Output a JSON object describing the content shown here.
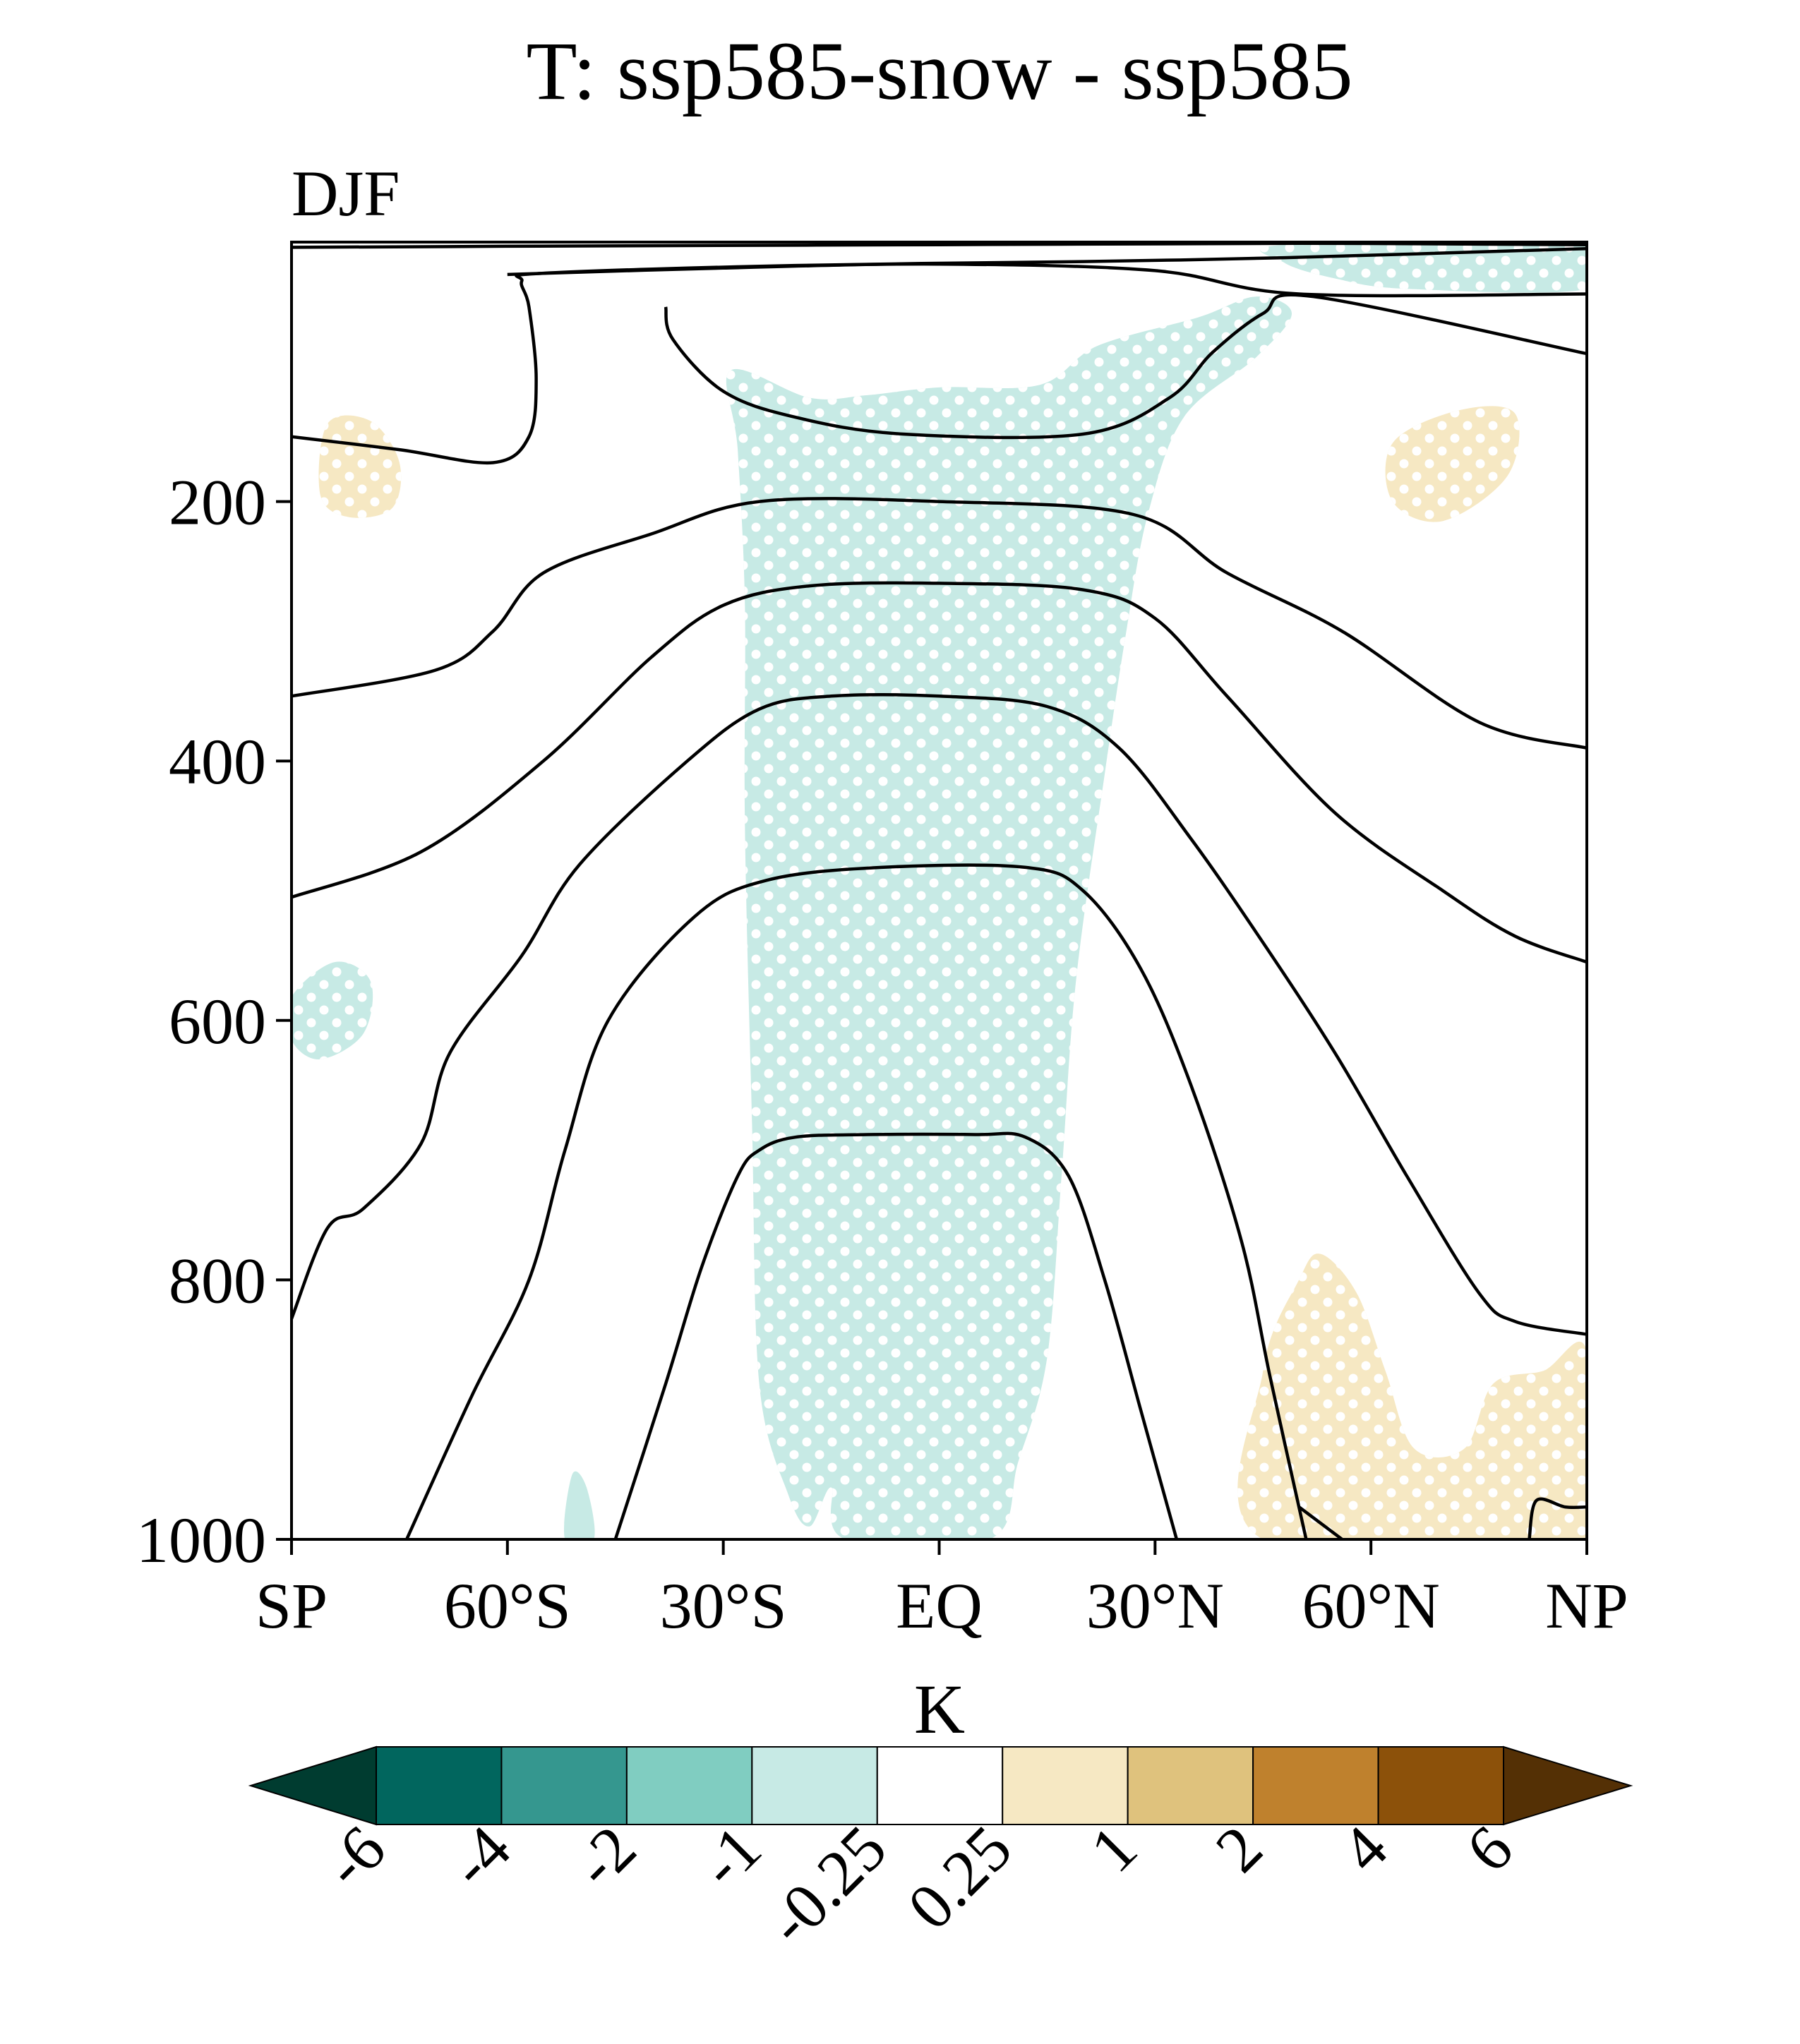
{
  "chart_data": {
    "type": "contour",
    "title": "T: ssp585-snow - ssp585",
    "subtitle": "DJF",
    "xlabel": "",
    "ylabel": "",
    "x_ticks": [
      {
        "value": -90,
        "label": "SP"
      },
      {
        "value": -60,
        "label": "60°S"
      },
      {
        "value": -30,
        "label": "30°S"
      },
      {
        "value": 0,
        "label": "EQ"
      },
      {
        "value": 30,
        "label": "30°N"
      },
      {
        "value": 60,
        "label": "60°N"
      },
      {
        "value": 90,
        "label": "NP"
      }
    ],
    "xlim": [
      -90,
      90
    ],
    "y_ticks": [
      {
        "value": 200,
        "label": "200"
      },
      {
        "value": 400,
        "label": "400"
      },
      {
        "value": 600,
        "label": "600"
      },
      {
        "value": 800,
        "label": "800"
      },
      {
        "value": 1000,
        "label": "1000"
      }
    ],
    "ylim": [
      0,
      1000
    ],
    "y_inverted": true,
    "colorbar": {
      "label": "K",
      "levels": [
        "-6",
        "-4",
        "-2",
        "-1",
        "-0.25",
        "0.25",
        "1",
        "2",
        "4",
        "6"
      ],
      "colors": [
        "#01665e",
        "#35978f",
        "#80cdc1",
        "#c7eae5",
        "#ffffff",
        "#f6e8c3",
        "#dfc27d",
        "#bf812d",
        "#8c510a"
      ],
      "under_color": "#003c30",
      "over_color": "#543005"
    },
    "shaded_regions": [
      {
        "name": "tropical-cooling",
        "category": "-1 to -0.25",
        "color": "#c7eae5",
        "stippled": true,
        "points": [
          [
            -29,
            99
          ],
          [
            -18,
            120
          ],
          [
            -10,
            118
          ],
          [
            0,
            112
          ],
          [
            14,
            110
          ],
          [
            22,
            80
          ],
          [
            36,
            58
          ],
          [
            44,
            42
          ],
          [
            49,
            55
          ],
          [
            44,
            89
          ],
          [
            34,
            135
          ],
          [
            29,
            210
          ],
          [
            26,
            300
          ],
          [
            23,
            410
          ],
          [
            19,
            570
          ],
          [
            17,
            720
          ],
          [
            15,
            860
          ],
          [
            11,
            940
          ],
          [
            7,
            1000
          ],
          [
            -13,
            1000
          ],
          [
            -15,
            960
          ],
          [
            -18,
            990
          ],
          [
            -21,
            965
          ],
          [
            -25,
            880
          ],
          [
            -26,
            680
          ],
          [
            -27,
            450
          ],
          [
            -27,
            280
          ],
          [
            -28,
            160
          ]
        ]
      },
      {
        "name": "upper-north-cooling",
        "category": "-1 to -0.25",
        "color": "#c7eae5",
        "stippled": true,
        "points": [
          [
            48,
            2
          ],
          [
            90,
            0
          ],
          [
            90,
            36
          ],
          [
            65,
            36
          ],
          [
            55,
            28
          ],
          [
            48,
            16
          ]
        ]
      },
      {
        "name": "sh-midlevel-cooling",
        "category": "-1 to -0.25",
        "color": "#c7eae5",
        "stippled": true,
        "points": [
          [
            -90,
            582
          ],
          [
            -84,
            555
          ],
          [
            -79,
            570
          ],
          [
            -80,
            610
          ],
          [
            -86,
            630
          ],
          [
            -90,
            615
          ]
        ]
      },
      {
        "name": "sh-near-surface-cooling",
        "category": "-1 to -0.25",
        "color": "#c7eae5",
        "stippled": false,
        "points": [
          [
            -51,
            950
          ],
          [
            -49,
            960
          ],
          [
            -48,
            1000
          ],
          [
            -52,
            1000
          ]
        ]
      },
      {
        "name": "sh-upper-warming",
        "category": "0.25 to 1",
        "color": "#f6e8c3",
        "stippled": true,
        "points": [
          [
            -85,
            140
          ],
          [
            -79,
            138
          ],
          [
            -75,
            170
          ],
          [
            -76,
            205
          ],
          [
            -82,
            212
          ],
          [
            -86,
            195
          ]
        ]
      },
      {
        "name": "nh-upper-warming",
        "category": "0.25 to 1",
        "color": "#f6e8c3",
        "stippled": true,
        "points": [
          [
            63,
            155
          ],
          [
            72,
            130
          ],
          [
            80,
            132
          ],
          [
            79,
            180
          ],
          [
            70,
            215
          ],
          [
            63,
            200
          ]
        ]
      },
      {
        "name": "nh-low-level-warming",
        "category": "0.25 to 1",
        "color": "#f6e8c3",
        "stippled": true,
        "points": [
          [
            45,
            870
          ],
          [
            50,
            800
          ],
          [
            53,
            780
          ],
          [
            58,
            810
          ],
          [
            62,
            870
          ],
          [
            66,
            930
          ],
          [
            73,
            930
          ],
          [
            77,
            880
          ],
          [
            84,
            870
          ],
          [
            90,
            855
          ],
          [
            90,
            1000
          ],
          [
            45,
            1000
          ]
        ]
      }
    ],
    "contour_lines": [
      [
        [
          -90,
          4
        ],
        [
          -50,
          3
        ],
        [
          0,
          2
        ],
        [
          50,
          1
        ],
        [
          90,
          2
        ]
      ],
      [
        [
          -60,
          25
        ],
        [
          -30,
          20
        ],
        [
          0,
          17
        ],
        [
          30,
          22
        ],
        [
          50,
          40
        ],
        [
          90,
          40
        ]
      ],
      [
        [
          -90,
          150
        ],
        [
          -75,
          160
        ],
        [
          -62,
          170
        ],
        [
          -57,
          150
        ],
        [
          -56,
          105
        ],
        [
          -57,
          50
        ],
        [
          -58,
          30
        ],
        [
          -55,
          24
        ],
        [
          -20,
          18
        ],
        [
          20,
          15
        ],
        [
          48,
          12
        ],
        [
          90,
          5
        ]
      ],
      [
        [
          -38,
          50
        ],
        [
          -37,
          75
        ],
        [
          -30,
          115
        ],
        [
          -20,
          135
        ],
        [
          -5,
          148
        ],
        [
          20,
          148
        ],
        [
          32,
          120
        ],
        [
          38,
          85
        ],
        [
          45,
          55
        ],
        [
          52,
          42
        ],
        [
          90,
          86
        ]
      ],
      [
        [
          -90,
          350
        ],
        [
          -70,
          330
        ],
        [
          -62,
          300
        ],
        [
          -55,
          255
        ],
        [
          -40,
          225
        ],
        [
          -25,
          200
        ],
        [
          0,
          200
        ],
        [
          27,
          210
        ],
        [
          40,
          255
        ],
        [
          56,
          300
        ],
        [
          75,
          370
        ],
        [
          90,
          390
        ]
      ],
      [
        [
          -90,
          505
        ],
        [
          -72,
          470
        ],
        [
          -55,
          400
        ],
        [
          -40,
          320
        ],
        [
          -30,
          280
        ],
        [
          -18,
          265
        ],
        [
          0,
          263
        ],
        [
          20,
          268
        ],
        [
          30,
          290
        ],
        [
          40,
          350
        ],
        [
          55,
          440
        ],
        [
          70,
          500
        ],
        [
          80,
          535
        ],
        [
          90,
          555
        ]
      ],
      [
        [
          -90,
          830
        ],
        [
          -85,
          760
        ],
        [
          -80,
          745
        ],
        [
          -72,
          695
        ],
        [
          -68,
          625
        ],
        [
          -58,
          550
        ],
        [
          -50,
          480
        ],
        [
          -35,
          400
        ],
        [
          -25,
          360
        ],
        [
          -15,
          350
        ],
        [
          0,
          350
        ],
        [
          15,
          358
        ],
        [
          25,
          390
        ],
        [
          35,
          460
        ],
        [
          45,
          540
        ],
        [
          55,
          625
        ],
        [
          65,
          720
        ],
        [
          75,
          810
        ],
        [
          80,
          832
        ],
        [
          90,
          842
        ]
      ],
      [
        [
          -74,
          1000
        ],
        [
          -65,
          890
        ],
        [
          -57,
          800
        ],
        [
          -52,
          700
        ],
        [
          -46,
          600
        ],
        [
          -34,
          520
        ],
        [
          -24,
          492
        ],
        [
          -8,
          482
        ],
        [
          12,
          482
        ],
        [
          20,
          500
        ],
        [
          28,
          560
        ],
        [
          35,
          650
        ],
        [
          42,
          770
        ],
        [
          46,
          875
        ],
        [
          51,
          1000
        ]
      ],
      [
        [
          -45,
          1000
        ],
        [
          -38,
          880
        ],
        [
          -33,
          790
        ],
        [
          -28,
          720
        ],
        [
          -25,
          700
        ],
        [
          -20,
          690
        ],
        [
          -10,
          688
        ],
        [
          5,
          688
        ],
        [
          12,
          690
        ],
        [
          18,
          720
        ],
        [
          23,
          800
        ],
        [
          28,
          900
        ],
        [
          33,
          1000
        ]
      ],
      [
        [
          82,
          1000
        ],
        [
          83,
          970
        ],
        [
          87,
          975
        ],
        [
          90,
          975
        ]
      ],
      [
        [
          50,
          975
        ],
        [
          56,
          1000
        ]
      ]
    ]
  }
}
